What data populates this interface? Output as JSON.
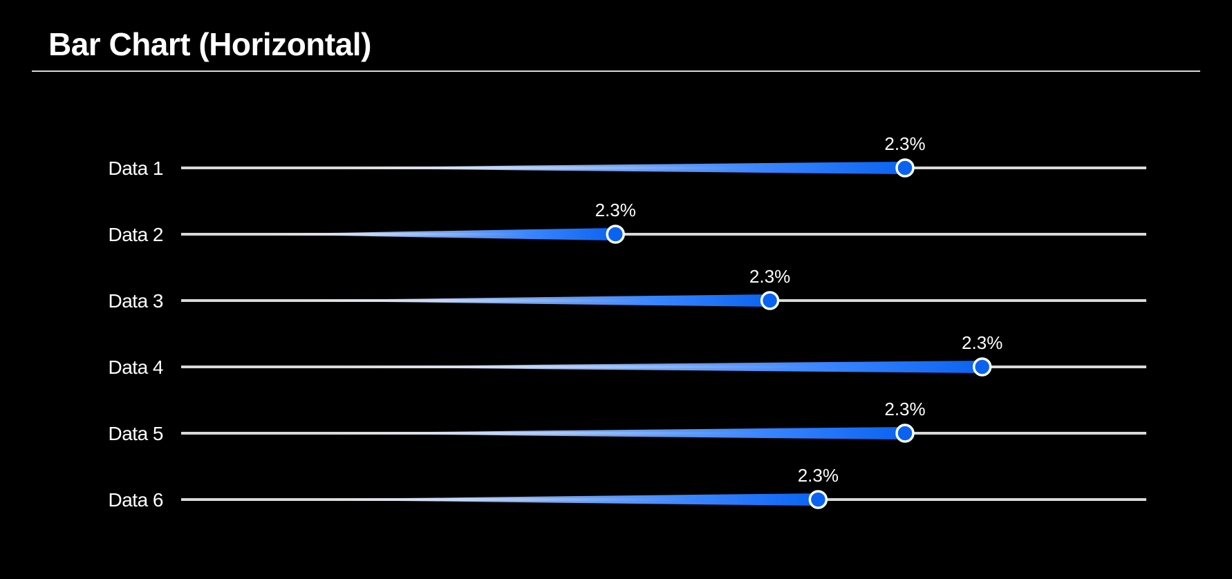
{
  "header": {
    "title": "Bar Chart (Horizontal)"
  },
  "colors": {
    "background": "#000000",
    "track": "#d9d9d9",
    "bar_start": "#ffffff",
    "bar_end": "#0a63f0",
    "marker_fill": "#0a63f0",
    "marker_stroke": "#ffffff",
    "text": "#ffffff"
  },
  "chart_data": {
    "type": "bar",
    "orientation": "horizontal",
    "title": "Bar Chart (Horizontal)",
    "categories": [
      "Data 1",
      "Data 2",
      "Data 3",
      "Data 4",
      "Data 5",
      "Data 6"
    ],
    "values": [
      75,
      45,
      61,
      83,
      75,
      66
    ],
    "data_labels": [
      "2.3%",
      "2.3%",
      "2.3%",
      "2.3%",
      "2.3%",
      "2.3%"
    ],
    "xlim": [
      0,
      100
    ],
    "grid": false,
    "legend": "none"
  }
}
